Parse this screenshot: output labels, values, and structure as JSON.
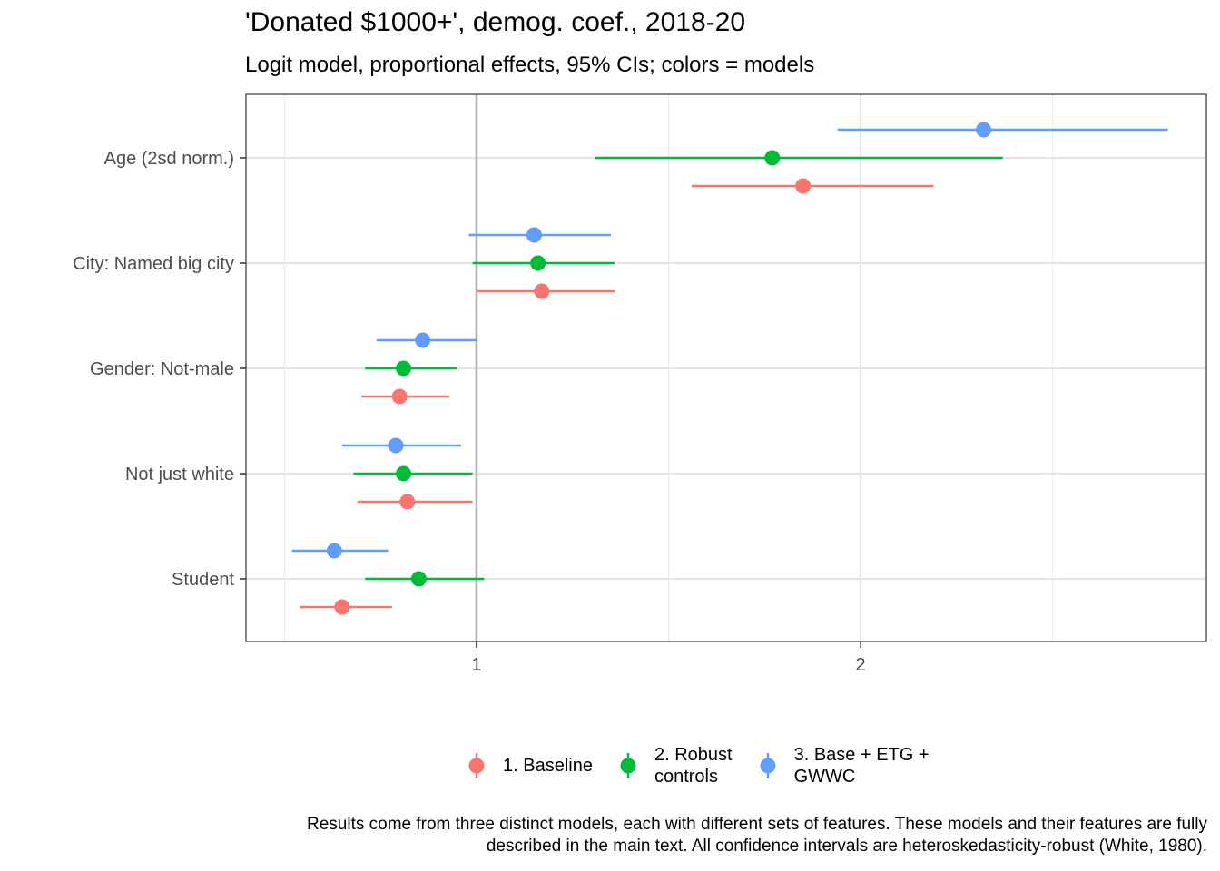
{
  "title": "'Donated $1000+', demog. coef., 2018-20",
  "subtitle": "Logit model, proportional effects, 95% CIs; colors = models",
  "caption_line1": "Results come from three distinct models, each with different sets of features. These models and their features are fully",
  "caption_line2": "described in the main text. All confidence intervals are heteroskedasticity-robust (White, 1980).",
  "legend": [
    {
      "label": "1. Baseline",
      "color": "#F8766D"
    },
    {
      "label": "2. Robust\ncontrols",
      "color": "#00BA38"
    },
    {
      "label": "3. Base + ETG +\nGWWC",
      "color": "#619CFF"
    }
  ],
  "chart_data": {
    "type": "scatter",
    "orientation": "horizontal dot-and-whisker",
    "categories": [
      "Age (2sd norm.)",
      "City: Named big city",
      "Gender: Not-male",
      "Not just white",
      "Student"
    ],
    "x_ticks": [
      1,
      2
    ],
    "xlim": [
      0.4,
      2.9
    ],
    "reference_line": 1,
    "grid": true,
    "legend_position": "bottom",
    "series": [
      {
        "name": "1. Baseline",
        "color": "#F8766D",
        "estimates": [
          1.85,
          1.17,
          0.8,
          0.82,
          0.65
        ],
        "lower": [
          1.56,
          1.0,
          0.7,
          0.69,
          0.54
        ],
        "upper": [
          2.19,
          1.36,
          0.93,
          0.99,
          0.78
        ]
      },
      {
        "name": "2. Robust controls",
        "color": "#00BA38",
        "estimates": [
          1.77,
          1.16,
          0.81,
          0.81,
          0.85
        ],
        "lower": [
          1.31,
          0.99,
          0.71,
          0.68,
          0.71
        ],
        "upper": [
          2.37,
          1.36,
          0.95,
          0.99,
          1.02
        ]
      },
      {
        "name": "3. Base + ETG + GWWC",
        "color": "#619CFF",
        "estimates": [
          2.32,
          1.15,
          0.86,
          0.79,
          0.63
        ],
        "lower": [
          1.94,
          0.98,
          0.74,
          0.65,
          0.52
        ],
        "upper": [
          2.8,
          1.35,
          1.0,
          0.96,
          0.77
        ]
      }
    ]
  }
}
